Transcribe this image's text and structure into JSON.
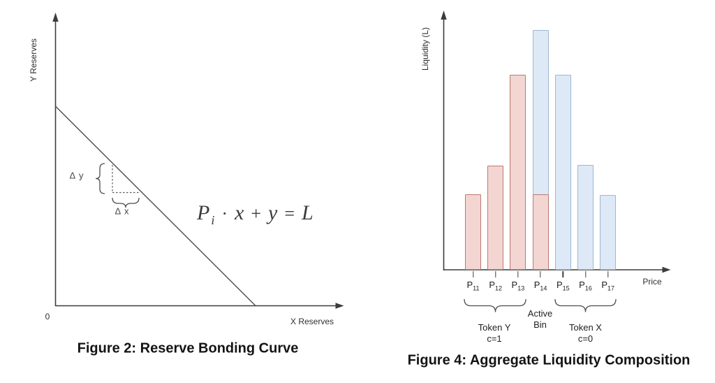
{
  "page": {
    "background": "#ffffff"
  },
  "figure2": {
    "caption": "Figure 2: Reserve Bonding Curve",
    "y_axis_label": "Y Reserves",
    "x_axis_label": "X Reserves",
    "origin_label": "0",
    "delta_y_label": "Δ y",
    "delta_x_label": "Δ x",
    "equation": {
      "P": "P",
      "sub": "i",
      "dot": "·",
      "x": "x",
      "plus": "+",
      "y": "y",
      "equals": "=",
      "L": "L"
    }
  },
  "figure4": {
    "caption": "Figure 4: Aggregate Liquidity Composition",
    "y_axis_label": "Liquidity (L)",
    "x_axis_label": "Price",
    "annotations": {
      "active_bin": [
        "Active",
        "Bin"
      ],
      "token_y": [
        "Token Y",
        "c=1"
      ],
      "token_x": [
        "Token X",
        "c=0"
      ]
    }
  },
  "chart_data": [
    {
      "type": "line",
      "title": "Figure 2: Reserve Bonding Curve",
      "xlabel": "X Reserves",
      "ylabel": "Y Reserves",
      "origin_label": "0",
      "equation": "Pᵢ · x + y = L",
      "annotations": [
        "Δ y",
        "Δ x"
      ],
      "description_series": [
        {
          "name": "bonding-curve",
          "points_norm": [
            [
              0,
              1
            ],
            [
              1,
              0
            ]
          ]
        }
      ],
      "grid": false,
      "legend": false
    },
    {
      "type": "bar",
      "title": "Figure 4: Aggregate Liquidity Composition",
      "xlabel": "Price",
      "ylabel": "Liquidity (L)",
      "categories": [
        "P11",
        "P12",
        "P13",
        "P14",
        "P15",
        "P16",
        "P17"
      ],
      "category_base": "P",
      "category_subscripts": [
        "11",
        "12",
        "13",
        "14",
        "15",
        "16",
        "17"
      ],
      "series": [
        {
          "name": "Token Y (c=1)",
          "fill": "#f3d5d2",
          "stroke": "#bc7a72",
          "values": [
            1.08,
            1.49,
            2.79,
            1.08,
            0,
            0,
            0
          ]
        },
        {
          "name": "Token X (c=0)",
          "fill": "#dee9f7",
          "stroke": "#a0b6d0",
          "values": [
            0,
            0,
            0,
            3.43,
            2.79,
            1.5,
            1.07
          ]
        }
      ],
      "active_bin_category": "P14",
      "group_labels": [
        {
          "label": "Token Y c=1",
          "categories": [
            "P11",
            "P12",
            "P13"
          ]
        },
        {
          "label": "Active Bin",
          "categories": [
            "P14"
          ]
        },
        {
          "label": "Token X c=0",
          "categories": [
            "P15",
            "P16",
            "P17"
          ]
        }
      ],
      "ylim": [
        0,
        3.6
      ],
      "grid": false,
      "legend": false
    }
  ]
}
